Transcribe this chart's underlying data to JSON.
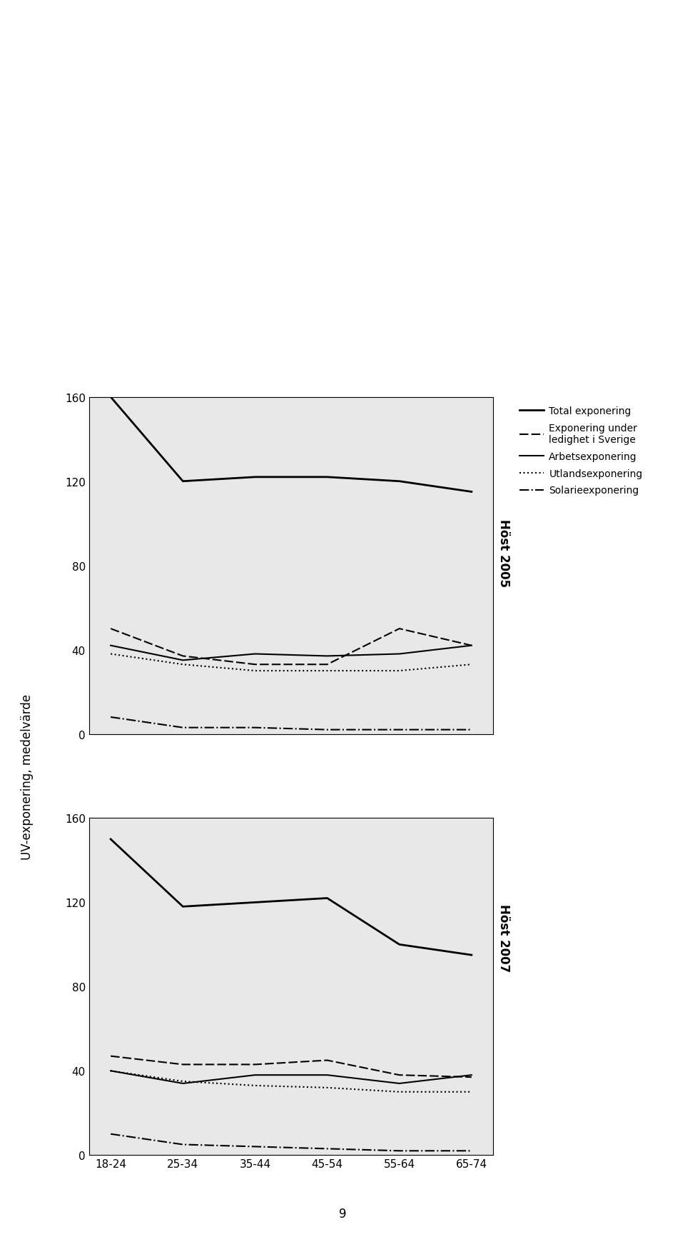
{
  "categories": [
    "18-24",
    "25-34",
    "35-44",
    "45-54",
    "55-64",
    "65-74"
  ],
  "host2005": {
    "total": [
      160,
      120,
      122,
      122,
      120,
      115
    ],
    "ledighet": [
      50,
      37,
      33,
      33,
      50,
      42
    ],
    "arbets": [
      42,
      35,
      38,
      37,
      38,
      42
    ],
    "utlands": [
      38,
      33,
      30,
      30,
      30,
      33
    ],
    "solarie": [
      8,
      3,
      3,
      2,
      2,
      2
    ]
  },
  "host2007": {
    "total": [
      150,
      118,
      120,
      122,
      100,
      95
    ],
    "ledighet": [
      47,
      43,
      43,
      45,
      38,
      37
    ],
    "arbets": [
      40,
      34,
      38,
      38,
      34,
      38
    ],
    "utlands": [
      40,
      35,
      33,
      32,
      30,
      30
    ],
    "solarie": [
      10,
      5,
      4,
      3,
      2,
      2
    ]
  },
  "ylim": [
    0,
    160
  ],
  "yticks": [
    0,
    40,
    80,
    120,
    160
  ],
  "ylabel": "UV-exponering, medelvärde",
  "xlabel": "",
  "label_total": "Total exponering",
  "label_ledighet": "Exponering under\nledighet i Sverige",
  "label_arbets": "Arbetsexponering",
  "label_utlands": "Utlandsexponering",
  "label_solarie": "Solarieexponering",
  "host2005_label": "Höst 2005",
  "host2007_label": "Höst 2007",
  "line_color": "#000000",
  "bg_color": "#e8e8e8",
  "fig_bg_color": "#ffffff"
}
